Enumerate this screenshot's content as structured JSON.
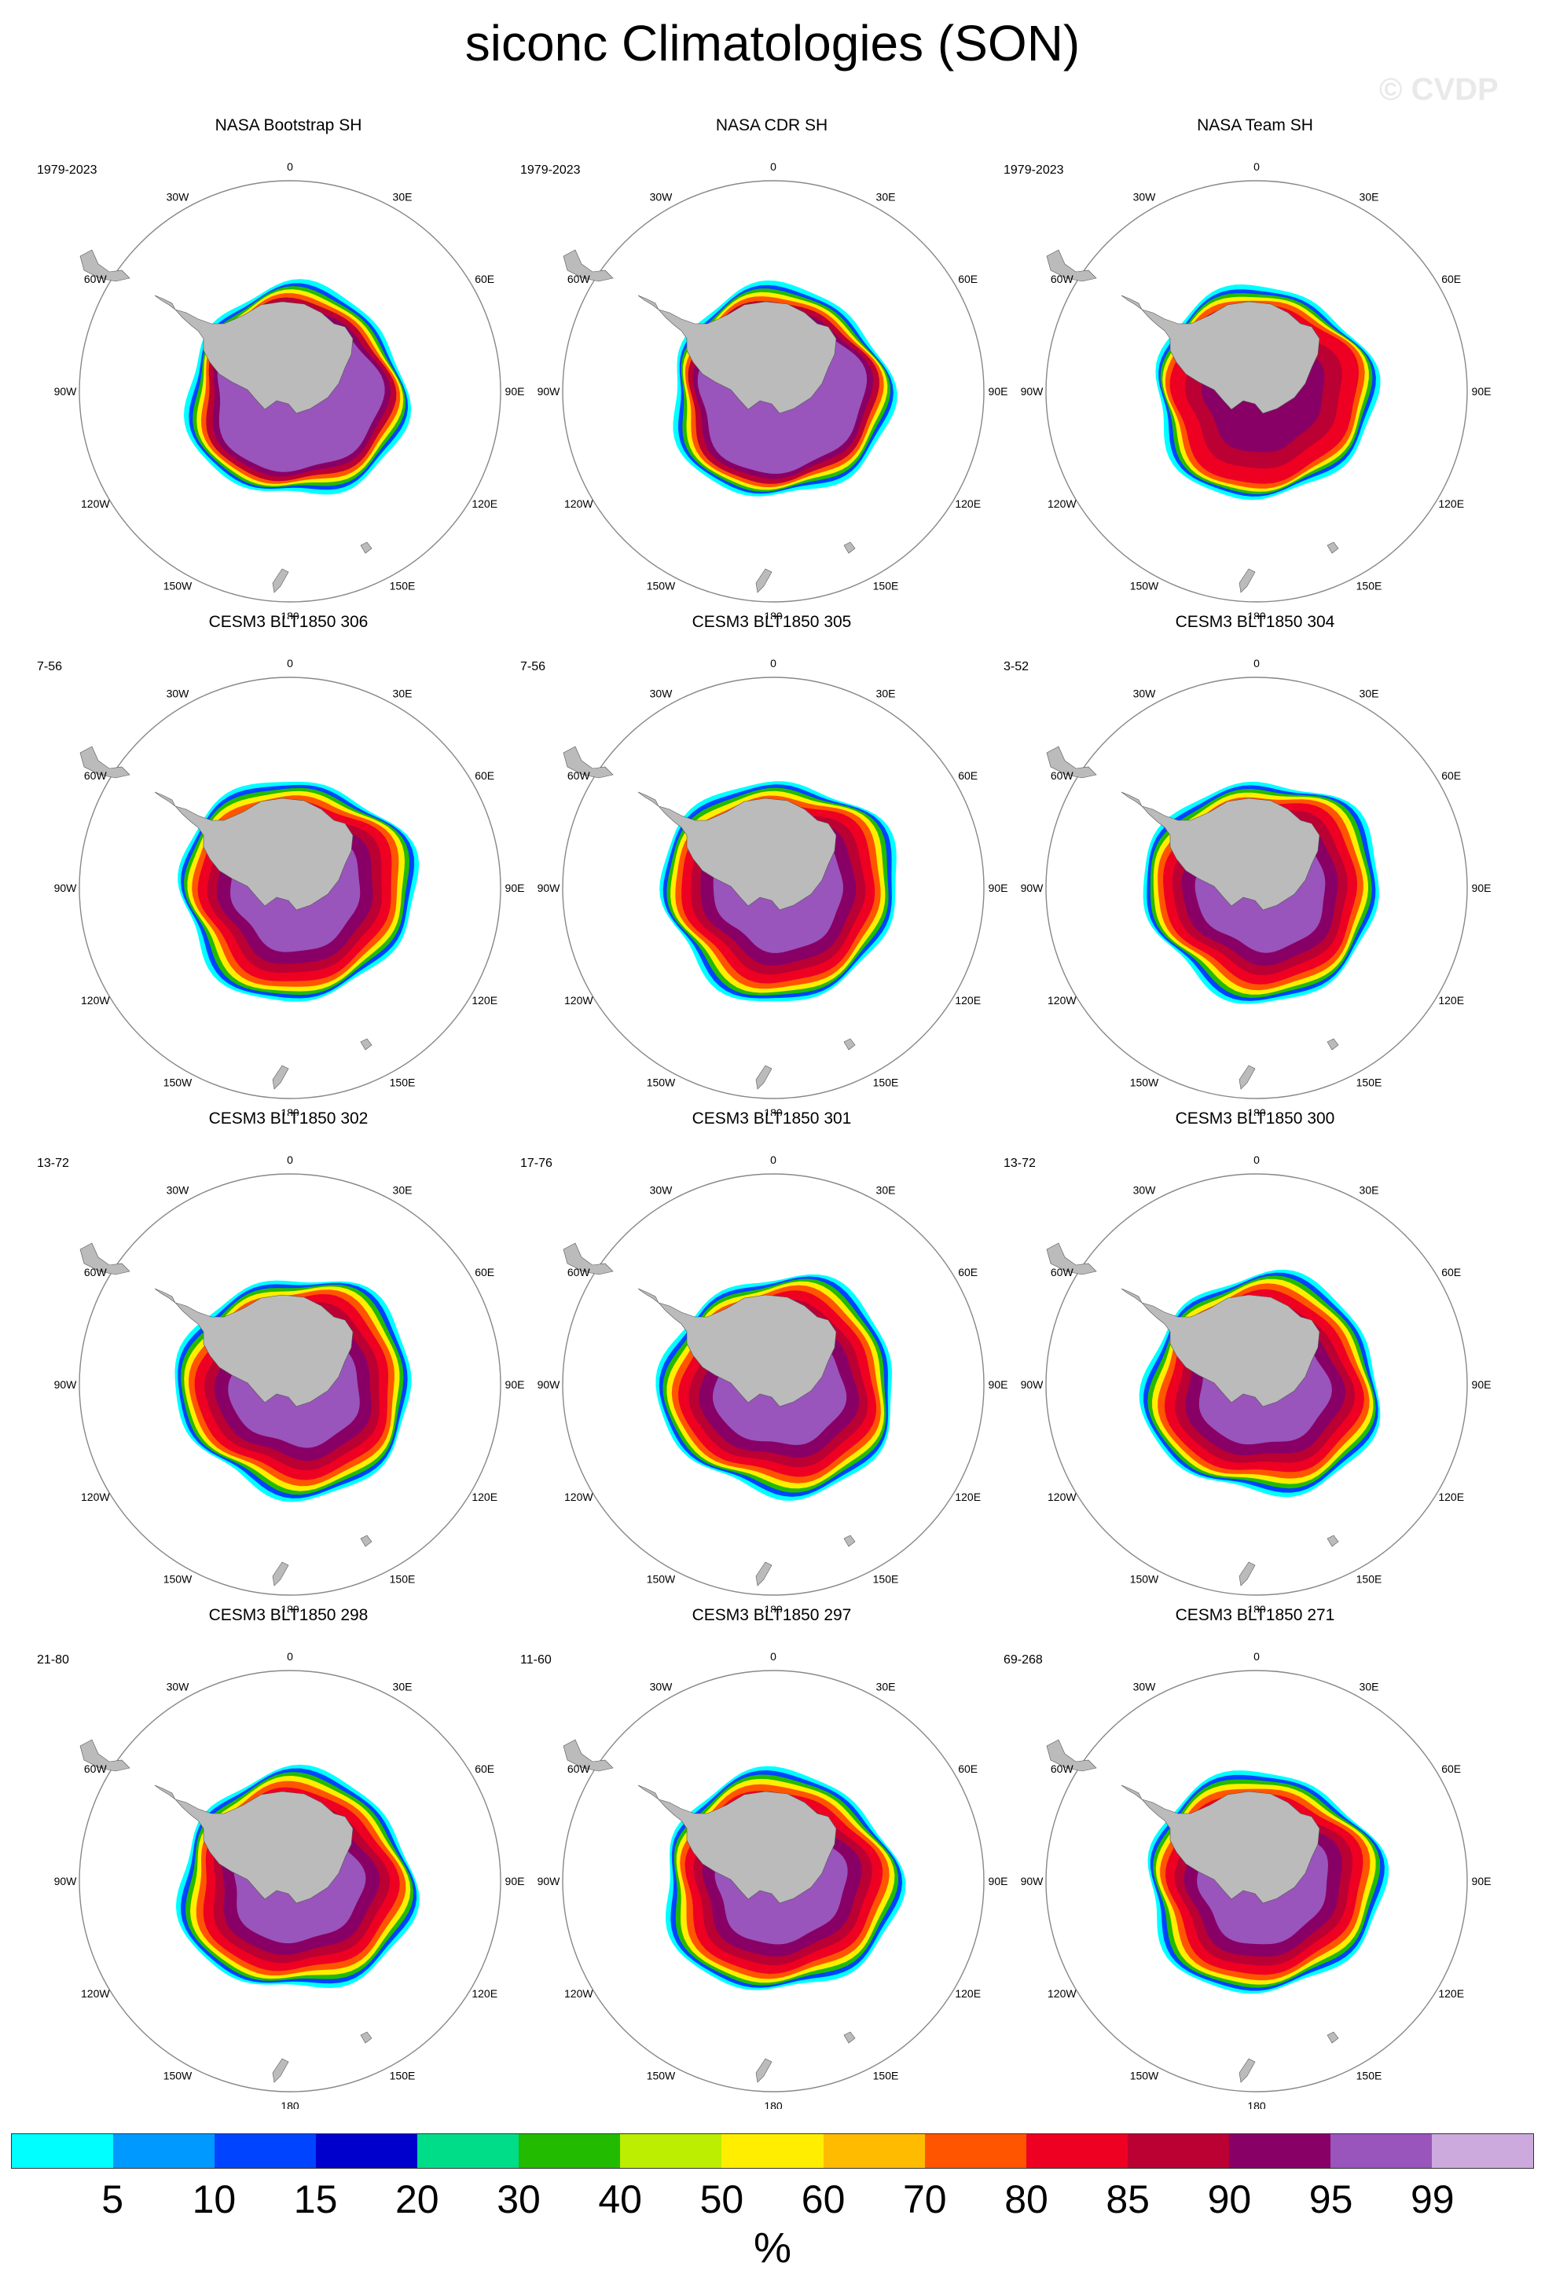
{
  "title": "siconc Climatologies (SON)",
  "watermark": "© CVDP",
  "lon_labels": [
    "0",
    "30E",
    "60E",
    "90E",
    "120E",
    "150E",
    "180",
    "150W",
    "120W",
    "90W",
    "60W",
    "30W"
  ],
  "panels": [
    {
      "title": "NASA Bootstrap SH",
      "years": "1979-2023",
      "style": "obs"
    },
    {
      "title": "NASA CDR SH",
      "years": "1979-2023",
      "style": "obs"
    },
    {
      "title": "NASA Team SH",
      "years": "1979-2023",
      "style": "team"
    },
    {
      "title": "CESM3 BLT1850 306",
      "years": "7-56",
      "style": "model"
    },
    {
      "title": "CESM3 BLT1850 305",
      "years": "7-56",
      "style": "model"
    },
    {
      "title": "CESM3 BLT1850 304",
      "years": "3-52",
      "style": "model"
    },
    {
      "title": "CESM3 BLT1850 302",
      "years": "13-72",
      "style": "model"
    },
    {
      "title": "CESM3 BLT1850 301",
      "years": "17-76",
      "style": "model"
    },
    {
      "title": "CESM3 BLT1850 300",
      "years": "13-72",
      "style": "model"
    },
    {
      "title": "CESM3 BLT1850 298",
      "years": "21-80",
      "style": "model"
    },
    {
      "title": "CESM3 BLT1850 297",
      "years": "11-60",
      "style": "model"
    },
    {
      "title": "CESM3 BLT1850 271",
      "years": "69-268",
      "style": "model"
    }
  ],
  "colorbar": {
    "colors": [
      "#00ffff",
      "#0099ff",
      "#0044ff",
      "#0000cc",
      "#00dd88",
      "#22bb00",
      "#bbee00",
      "#ffee00",
      "#ffbb00",
      "#ff5500",
      "#ee0022",
      "#bb0033",
      "#880066",
      "#9955bb",
      "#ccaadd"
    ],
    "labels": [
      "5",
      "10",
      "15",
      "20",
      "30",
      "40",
      "50",
      "60",
      "70",
      "80",
      "85",
      "90",
      "95",
      "99"
    ],
    "unit": "%"
  },
  "colors": {
    "land": "#bbbbbb",
    "coast": "#000000"
  }
}
